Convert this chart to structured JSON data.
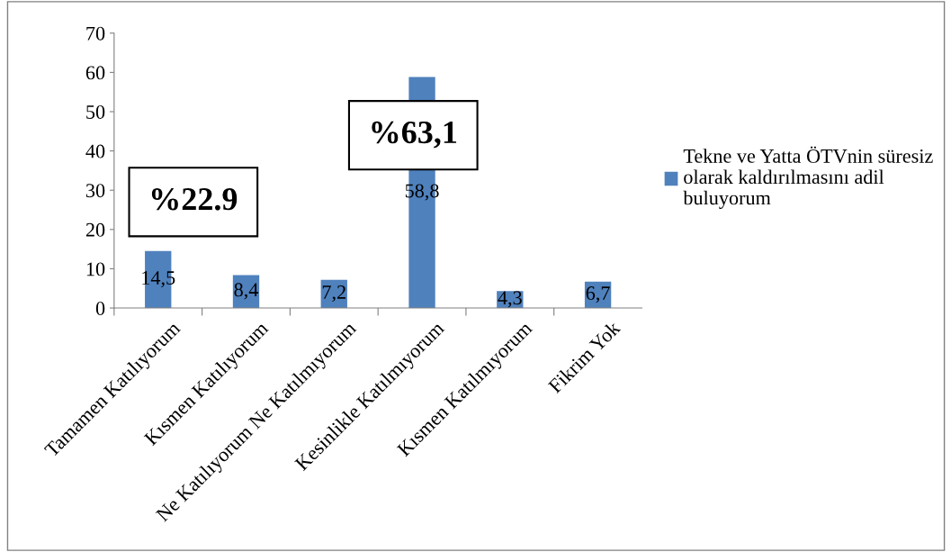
{
  "chart_data": {
    "type": "bar",
    "categories": [
      "Tamamen Katılıyorum",
      "Kısmen Katılıyorum",
      "Ne Katılıyorum Ne Katılmıyorum",
      "Kesinlikle Katılmıyorum",
      "Kısmen Katılmıyorum",
      "Fikrim Yok"
    ],
    "series": [
      {
        "name": "Tekne ve Yatta ÖTVnin süresiz\nolarak kaldırılmasını adil\nbuluyorum",
        "color": "#4f81bd",
        "values": [
          14.5,
          8.4,
          7.2,
          58.8,
          4.3,
          6.7
        ],
        "value_labels": [
          "14,5",
          "8,4",
          "7,2",
          "58,8",
          "4,3",
          "6,7"
        ]
      }
    ],
    "ylim": [
      0,
      70
    ],
    "yticks": [
      0,
      10,
      20,
      30,
      40,
      50,
      60,
      70
    ],
    "annotations": [
      "%22.9",
      "%63,1"
    ],
    "grid": false,
    "legend": "right"
  }
}
